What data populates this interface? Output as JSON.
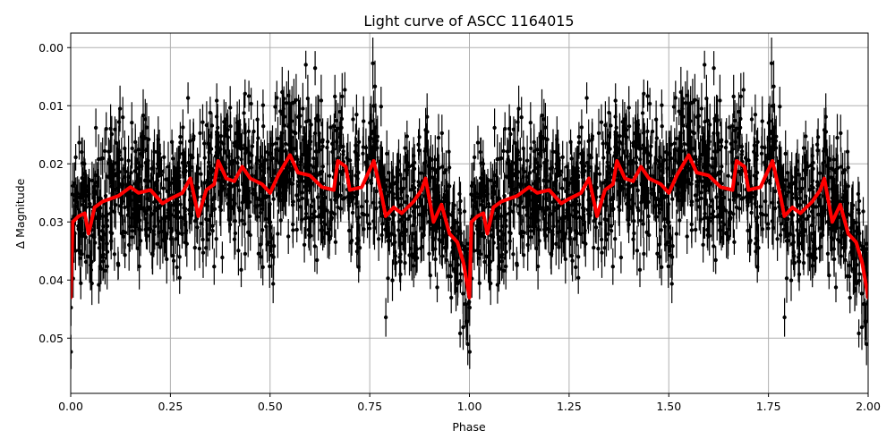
{
  "chart_data": {
    "type": "scatter",
    "title": "Light curve of ASCC 1164015",
    "xlabel": "Phase",
    "ylabel": "Δ Magnitude",
    "xlim": [
      0.0,
      2.0
    ],
    "ylim": [
      0.0595,
      -0.0025
    ],
    "y_inverted": true,
    "grid": true,
    "legend": null,
    "x_ticks": [
      "0.00",
      "0.25",
      "0.50",
      "0.75",
      "1.00",
      "1.25",
      "1.50",
      "1.75",
      "2.00"
    ],
    "y_ticks": [
      "0.00",
      "0.01",
      "0.02",
      "0.03",
      "0.04",
      "0.05"
    ],
    "x_tick_values": [
      0.0,
      0.25,
      0.5,
      0.75,
      1.0,
      1.25,
      1.5,
      1.75,
      2.0
    ],
    "y_tick_values": [
      0.0,
      0.01,
      0.02,
      0.03,
      0.04,
      0.05
    ],
    "series": [
      {
        "name": "observations",
        "kind": "errorbar-scatter",
        "color": "#000000",
        "description": "Dense black points with vertical error bars, phase-folded and repeated over two cycles",
        "approx_center": 0.027,
        "approx_scatter_sd": 0.011,
        "approx_error_bar_halfwidth": 0.003,
        "approx_point_count_per_cycle": 1400
      },
      {
        "name": "binned mean (smoothed)",
        "kind": "line",
        "color": "#ff0000",
        "line_width": 4,
        "x": [
          0.0,
          0.005,
          0.02,
          0.035,
          0.045,
          0.06,
          0.08,
          0.1,
          0.12,
          0.15,
          0.17,
          0.2,
          0.23,
          0.25,
          0.28,
          0.3,
          0.32,
          0.34,
          0.36,
          0.37,
          0.39,
          0.41,
          0.43,
          0.45,
          0.48,
          0.5,
          0.52,
          0.55,
          0.57,
          0.6,
          0.63,
          0.66,
          0.67,
          0.69,
          0.7,
          0.73,
          0.76,
          0.78,
          0.79,
          0.81,
          0.83,
          0.86,
          0.88,
          0.89,
          0.91,
          0.93,
          0.95,
          0.97,
          0.985,
          1.0,
          1.005,
          1.02,
          1.035,
          1.045,
          1.06,
          1.08,
          1.1,
          1.12,
          1.15,
          1.17,
          1.2,
          1.23,
          1.25,
          1.28,
          1.3,
          1.32,
          1.34,
          1.36,
          1.37,
          1.39,
          1.41,
          1.43,
          1.45,
          1.48,
          1.5,
          1.52,
          1.55,
          1.57,
          1.6,
          1.63,
          1.66,
          1.67,
          1.69,
          1.7,
          1.73,
          1.76,
          1.78,
          1.79,
          1.81,
          1.83,
          1.86,
          1.88,
          1.89,
          1.91,
          1.93,
          1.95,
          1.97,
          1.985,
          2.0
        ],
        "y": [
          0.043,
          0.03,
          0.029,
          0.0285,
          0.032,
          0.0275,
          0.0265,
          0.026,
          0.0255,
          0.024,
          0.025,
          0.0245,
          0.0268,
          0.026,
          0.025,
          0.0225,
          0.029,
          0.0245,
          0.0235,
          0.0195,
          0.0225,
          0.023,
          0.0205,
          0.0225,
          0.0235,
          0.025,
          0.022,
          0.0185,
          0.0215,
          0.022,
          0.024,
          0.0245,
          0.0195,
          0.0205,
          0.0245,
          0.024,
          0.0195,
          0.0255,
          0.029,
          0.0275,
          0.0285,
          0.0265,
          0.0245,
          0.0225,
          0.03,
          0.027,
          0.032,
          0.0335,
          0.037,
          0.043,
          0.03,
          0.029,
          0.0285,
          0.032,
          0.0275,
          0.0265,
          0.026,
          0.0255,
          0.024,
          0.025,
          0.0245,
          0.0268,
          0.026,
          0.025,
          0.0225,
          0.029,
          0.0245,
          0.0235,
          0.0195,
          0.0225,
          0.023,
          0.0205,
          0.0225,
          0.0235,
          0.025,
          0.022,
          0.0185,
          0.0215,
          0.022,
          0.024,
          0.0245,
          0.0195,
          0.0205,
          0.0245,
          0.024,
          0.0195,
          0.0255,
          0.029,
          0.0275,
          0.0285,
          0.0265,
          0.0245,
          0.0225,
          0.03,
          0.027,
          0.032,
          0.0335,
          0.037,
          0.043
        ]
      }
    ]
  },
  "colors": {
    "background": "#ffffff",
    "grid": "#b0b0b0",
    "points": "#000000",
    "curve": "#ff0000",
    "axes": "#000000"
  }
}
